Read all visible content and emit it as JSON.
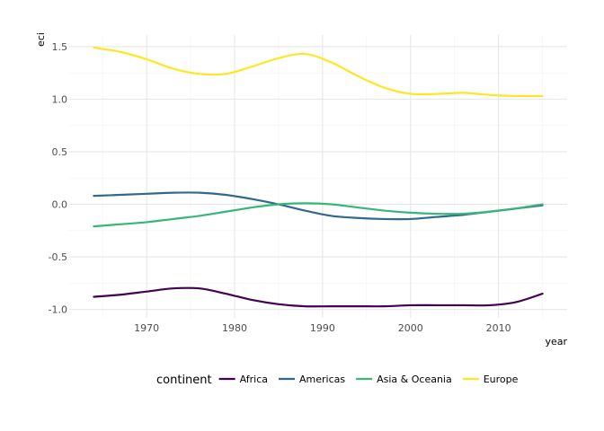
{
  "chart_data": {
    "type": "line",
    "xlabel": "year",
    "ylabel": "eci",
    "xlim": [
      1961.2,
      2017.8
    ],
    "ylim": [
      -1.08,
      1.61
    ],
    "x_ticks": [
      1970,
      1980,
      1990,
      2000,
      2010
    ],
    "x_tick_labels": [
      "1970",
      "1980",
      "1990",
      "2000",
      "2010"
    ],
    "y_ticks": [
      -1.0,
      -0.5,
      0.0,
      0.5,
      1.0,
      1.5
    ],
    "y_tick_labels": [
      "-1.0",
      "-0.5",
      "0.0",
      "0.5",
      "1.0",
      "1.5"
    ],
    "grid": true,
    "legend": {
      "title": "continent",
      "position": "bottom"
    },
    "series": [
      {
        "name": "Africa",
        "color": "#440154",
        "x": [
          1964,
          1967,
          1970,
          1973,
          1976,
          1979,
          1982,
          1985,
          1988,
          1991,
          1994,
          1997,
          2000,
          2003,
          2006,
          2009,
          2012,
          2015
        ],
        "y": [
          -0.88,
          -0.86,
          -0.83,
          -0.8,
          -0.8,
          -0.85,
          -0.91,
          -0.95,
          -0.97,
          -0.97,
          -0.97,
          -0.97,
          -0.96,
          -0.96,
          -0.96,
          -0.96,
          -0.93,
          -0.85
        ]
      },
      {
        "name": "Americas",
        "color": "#31688e",
        "x": [
          1964,
          1967,
          1970,
          1973,
          1976,
          1979,
          1982,
          1985,
          1988,
          1991,
          1994,
          1997,
          2000,
          2003,
          2006,
          2009,
          2012,
          2015
        ],
        "y": [
          0.08,
          0.09,
          0.1,
          0.11,
          0.11,
          0.09,
          0.05,
          0.0,
          -0.06,
          -0.11,
          -0.13,
          -0.14,
          -0.14,
          -0.12,
          -0.1,
          -0.07,
          -0.04,
          -0.01
        ]
      },
      {
        "name": "Asia & Oceania",
        "color": "#35b779",
        "x": [
          1964,
          1967,
          1970,
          1973,
          1976,
          1979,
          1982,
          1985,
          1988,
          1991,
          1994,
          1997,
          2000,
          2003,
          2006,
          2009,
          2012,
          2015
        ],
        "y": [
          -0.21,
          -0.19,
          -0.17,
          -0.14,
          -0.11,
          -0.07,
          -0.03,
          0.0,
          0.01,
          0.0,
          -0.03,
          -0.06,
          -0.08,
          -0.09,
          -0.09,
          -0.07,
          -0.04,
          0.0
        ]
      },
      {
        "name": "Europe",
        "color": "#fde725",
        "x": [
          1964,
          1967,
          1970,
          1973,
          1976,
          1979,
          1982,
          1985,
          1988,
          1991,
          1994,
          1997,
          2000,
          2003,
          2006,
          2009,
          2012,
          2015
        ],
        "y": [
          1.49,
          1.45,
          1.38,
          1.29,
          1.24,
          1.24,
          1.31,
          1.39,
          1.43,
          1.35,
          1.22,
          1.11,
          1.05,
          1.05,
          1.06,
          1.04,
          1.03,
          1.03
        ]
      }
    ]
  }
}
